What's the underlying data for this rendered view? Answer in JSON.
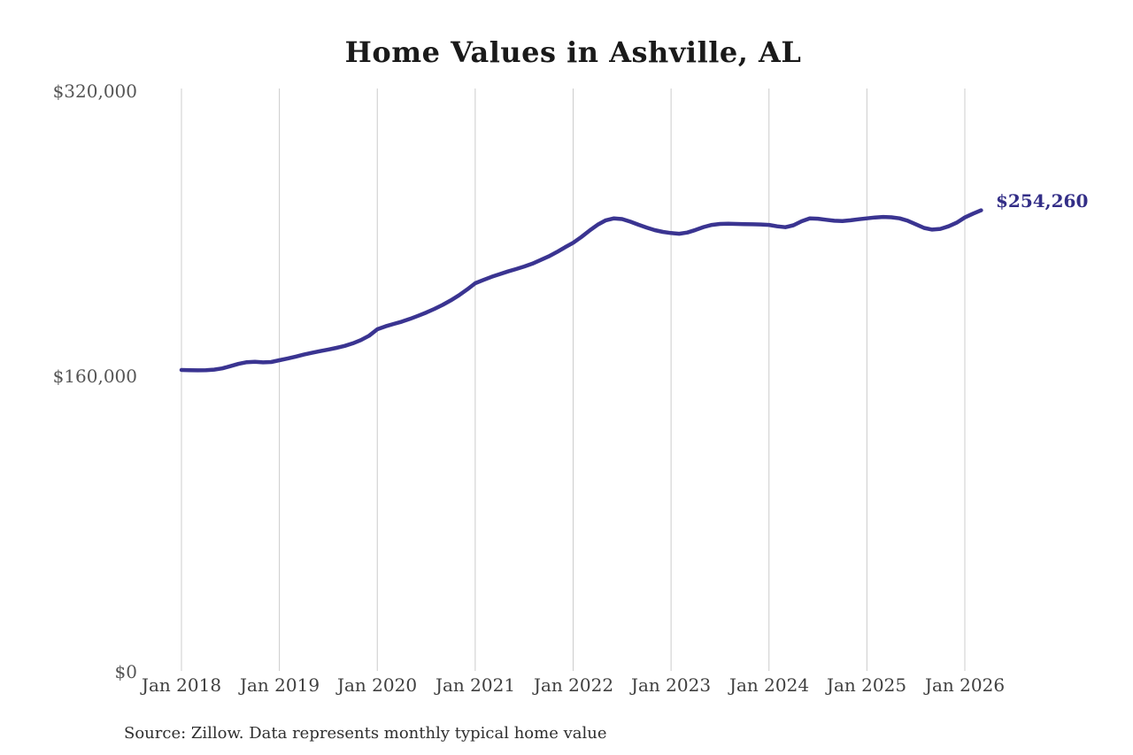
{
  "style": {
    "line_color": "#3a3491",
    "gridline_color": "#cccccc",
    "title_color": "#1a1a1a",
    "y_tick_color": "#555555",
    "x_tick_color": "#3f3f3f",
    "annotation_color": "#332e87",
    "source_color": "#2f2f2f",
    "background_color": "#ffffff"
  },
  "chart_data": {
    "type": "line",
    "title": "Home Values in Ashville, AL",
    "source": "Source: Zillow. Data represents monthly typical home value",
    "annotation": "$254,260",
    "xlabel": "",
    "ylabel": "",
    "ylim": [
      0,
      320000
    ],
    "y_ticks": [
      "$0",
      "$160,000",
      "$320,000"
    ],
    "y_tick_values": [
      0,
      160000,
      320000
    ],
    "x_ticks": [
      "Jan 2018",
      "Jan 2019",
      "Jan 2020",
      "Jan 2021",
      "Jan 2022",
      "Jan 2023",
      "Jan 2024",
      "Jan 2025",
      "Jan 2026"
    ],
    "frequency": "monthly",
    "x_start": "Jan 2018",
    "x_end": "Mar 2026",
    "grid": "vertical-only",
    "legend": "none",
    "series": [
      {
        "name": "Typical home value",
        "values": [
          166100,
          166000,
          165900,
          166000,
          166300,
          167000,
          168200,
          169500,
          170400,
          170600,
          170300,
          170500,
          171500,
          172400,
          173500,
          174600,
          175600,
          176500,
          177400,
          178300,
          179400,
          180800,
          182600,
          185000,
          188600,
          190200,
          191500,
          192800,
          194300,
          196000,
          197800,
          199800,
          202000,
          204500,
          207300,
          210500,
          214000,
          215800,
          217500,
          219000,
          220500,
          221800,
          223200,
          224800,
          226800,
          228800,
          231200,
          233800,
          236300,
          239500,
          243000,
          246300,
          248700,
          249800,
          249400,
          248000,
          246300,
          244700,
          243300,
          242300,
          241700,
          241300,
          242000,
          243400,
          245000,
          246200,
          246700,
          246800,
          246700,
          246600,
          246500,
          246400,
          246200,
          245400,
          244900,
          246000,
          248200,
          249800,
          249600,
          249000,
          248500,
          248300,
          248700,
          249300,
          249800,
          250300,
          250600,
          250400,
          249800,
          248500,
          246500,
          244500,
          243600,
          244000,
          245400,
          247400,
          250300,
          252400,
          254260
        ],
        "last_value": 254260
      }
    ]
  }
}
